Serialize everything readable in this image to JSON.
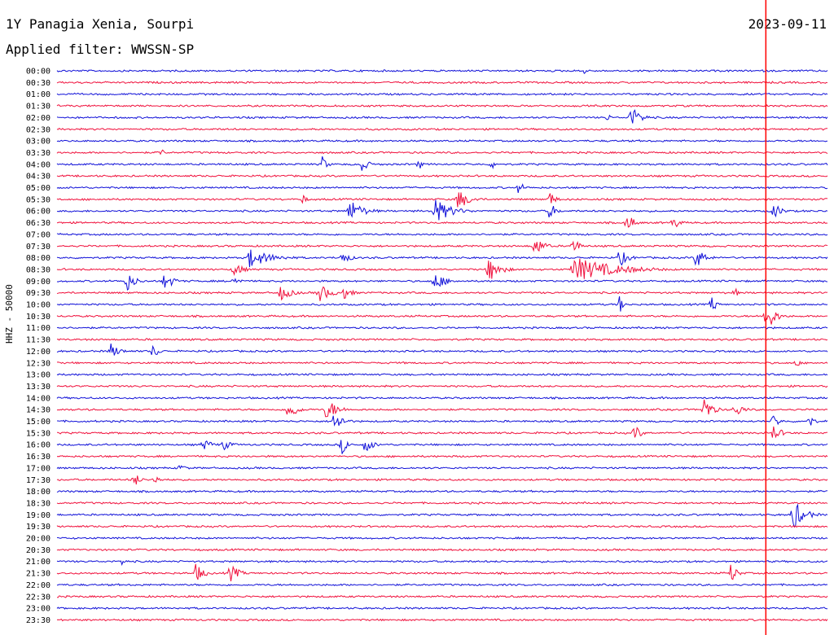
{
  "header": {
    "station": "1Y Panagia Xenia, Sourpi",
    "date": "2023-09-11",
    "filter": "Applied filter: WWSSN-SP"
  },
  "axis": {
    "ylabel": "HHZ - 50000"
  },
  "colors": {
    "trace_a": "#1010d8",
    "trace_b": "#f0103c",
    "marker": "#ff0000"
  },
  "chart_data": {
    "type": "helicorder",
    "channel": "HHZ - 50000",
    "row_labels": [
      "00:00",
      "00:30",
      "01:00",
      "01:30",
      "02:00",
      "02:30",
      "03:00",
      "03:30",
      "04:00",
      "04:30",
      "05:00",
      "05:30",
      "06:00",
      "06:30",
      "07:00",
      "07:30",
      "08:00",
      "08:30",
      "09:00",
      "09:30",
      "10:00",
      "10:30",
      "11:00",
      "11:30",
      "12:00",
      "12:30",
      "13:00",
      "13:30",
      "14:00",
      "14:30",
      "15:00",
      "15:30",
      "16:00",
      "16:30",
      "17:00",
      "17:30",
      "18:00",
      "18:30",
      "19:00",
      "19:30",
      "20:00",
      "20:30",
      "21:00",
      "21:30",
      "22:00",
      "22:30",
      "23:00",
      "23:30"
    ],
    "row_colors": [
      "blue",
      "red"
    ],
    "minutes_per_row": 30,
    "current_time_marker_fraction": 0.92,
    "bursts": [
      {
        "row": 0,
        "pos": 0.685,
        "amp": 12,
        "dur": 0.004
      },
      {
        "row": 4,
        "pos": 0.745,
        "amp": 14,
        "dur": 0.035
      },
      {
        "row": 4,
        "pos": 0.715,
        "amp": 6,
        "dur": 0.01
      },
      {
        "row": 7,
        "pos": 0.135,
        "amp": 7,
        "dur": 0.01
      },
      {
        "row": 8,
        "pos": 0.345,
        "amp": 12,
        "dur": 0.015
      },
      {
        "row": 8,
        "pos": 0.395,
        "amp": 10,
        "dur": 0.025
      },
      {
        "row": 8,
        "pos": 0.47,
        "amp": 8,
        "dur": 0.01
      },
      {
        "row": 8,
        "pos": 0.565,
        "amp": 7,
        "dur": 0.01
      },
      {
        "row": 10,
        "pos": 0.6,
        "amp": 10,
        "dur": 0.015
      },
      {
        "row": 11,
        "pos": 0.32,
        "amp": 8,
        "dur": 0.01
      },
      {
        "row": 11,
        "pos": 0.52,
        "amp": 14,
        "dur": 0.04
      },
      {
        "row": 11,
        "pos": 0.64,
        "amp": 10,
        "dur": 0.02
      },
      {
        "row": 12,
        "pos": 0.38,
        "amp": 14,
        "dur": 0.05
      },
      {
        "row": 12,
        "pos": 0.49,
        "amp": 16,
        "dur": 0.06
      },
      {
        "row": 12,
        "pos": 0.64,
        "amp": 12,
        "dur": 0.02
      },
      {
        "row": 12,
        "pos": 0.93,
        "amp": 10,
        "dur": 0.03
      },
      {
        "row": 13,
        "pos": 0.74,
        "amp": 12,
        "dur": 0.025
      },
      {
        "row": 13,
        "pos": 0.8,
        "amp": 10,
        "dur": 0.02
      },
      {
        "row": 15,
        "pos": 0.62,
        "amp": 14,
        "dur": 0.03
      },
      {
        "row": 15,
        "pos": 0.67,
        "amp": 12,
        "dur": 0.02
      },
      {
        "row": 16,
        "pos": 0.25,
        "amp": 12,
        "dur": 0.08
      },
      {
        "row": 16,
        "pos": 0.37,
        "amp": 8,
        "dur": 0.03
      },
      {
        "row": 16,
        "pos": 0.73,
        "amp": 12,
        "dur": 0.03
      },
      {
        "row": 16,
        "pos": 0.83,
        "amp": 14,
        "dur": 0.03
      },
      {
        "row": 17,
        "pos": 0.23,
        "amp": 10,
        "dur": 0.03
      },
      {
        "row": 17,
        "pos": 0.56,
        "amp": 16,
        "dur": 0.04
      },
      {
        "row": 17,
        "pos": 0.67,
        "amp": 16,
        "dur": 0.15
      },
      {
        "row": 18,
        "pos": 0.09,
        "amp": 14,
        "dur": 0.03
      },
      {
        "row": 18,
        "pos": 0.14,
        "amp": 12,
        "dur": 0.03
      },
      {
        "row": 18,
        "pos": 0.23,
        "amp": 8,
        "dur": 0.02
      },
      {
        "row": 18,
        "pos": 0.49,
        "amp": 12,
        "dur": 0.04
      },
      {
        "row": 19,
        "pos": 0.29,
        "amp": 10,
        "dur": 0.04
      },
      {
        "row": 19,
        "pos": 0.34,
        "amp": 12,
        "dur": 0.04
      },
      {
        "row": 19,
        "pos": 0.37,
        "amp": 10,
        "dur": 0.03
      },
      {
        "row": 19,
        "pos": 0.88,
        "amp": 8,
        "dur": 0.01
      },
      {
        "row": 20,
        "pos": 0.73,
        "amp": 12,
        "dur": 0.015
      },
      {
        "row": 20,
        "pos": 0.85,
        "amp": 12,
        "dur": 0.015
      },
      {
        "row": 21,
        "pos": 0.92,
        "amp": 22,
        "dur": 0.03
      },
      {
        "row": 24,
        "pos": 0.07,
        "amp": 10,
        "dur": 0.03
      },
      {
        "row": 24,
        "pos": 0.125,
        "amp": 10,
        "dur": 0.02
      },
      {
        "row": 25,
        "pos": 0.96,
        "amp": 8,
        "dur": 0.01
      },
      {
        "row": 29,
        "pos": 0.3,
        "amp": 14,
        "dur": 0.03
      },
      {
        "row": 29,
        "pos": 0.35,
        "amp": 14,
        "dur": 0.04
      },
      {
        "row": 29,
        "pos": 0.84,
        "amp": 16,
        "dur": 0.03
      },
      {
        "row": 29,
        "pos": 0.88,
        "amp": 10,
        "dur": 0.03
      },
      {
        "row": 30,
        "pos": 0.36,
        "amp": 14,
        "dur": 0.03
      },
      {
        "row": 30,
        "pos": 0.93,
        "amp": 10,
        "dur": 0.02
      },
      {
        "row": 30,
        "pos": 0.975,
        "amp": 10,
        "dur": 0.02
      },
      {
        "row": 31,
        "pos": 0.75,
        "amp": 12,
        "dur": 0.02
      },
      {
        "row": 31,
        "pos": 0.93,
        "amp": 10,
        "dur": 0.03
      },
      {
        "row": 32,
        "pos": 0.19,
        "amp": 8,
        "dur": 0.03
      },
      {
        "row": 32,
        "pos": 0.215,
        "amp": 8,
        "dur": 0.03
      },
      {
        "row": 32,
        "pos": 0.37,
        "amp": 12,
        "dur": 0.02
      },
      {
        "row": 32,
        "pos": 0.4,
        "amp": 10,
        "dur": 0.03
      },
      {
        "row": 34,
        "pos": 0.16,
        "amp": 6,
        "dur": 0.02
      },
      {
        "row": 35,
        "pos": 0.1,
        "amp": 10,
        "dur": 0.02
      },
      {
        "row": 35,
        "pos": 0.125,
        "amp": 8,
        "dur": 0.02
      },
      {
        "row": 38,
        "pos": 0.955,
        "amp": 20,
        "dur": 0.04
      },
      {
        "row": 42,
        "pos": 0.085,
        "amp": 6,
        "dur": 0.01
      },
      {
        "row": 43,
        "pos": 0.18,
        "amp": 12,
        "dur": 0.03
      },
      {
        "row": 43,
        "pos": 0.225,
        "amp": 12,
        "dur": 0.03
      },
      {
        "row": 43,
        "pos": 0.875,
        "amp": 14,
        "dur": 0.02
      }
    ]
  }
}
